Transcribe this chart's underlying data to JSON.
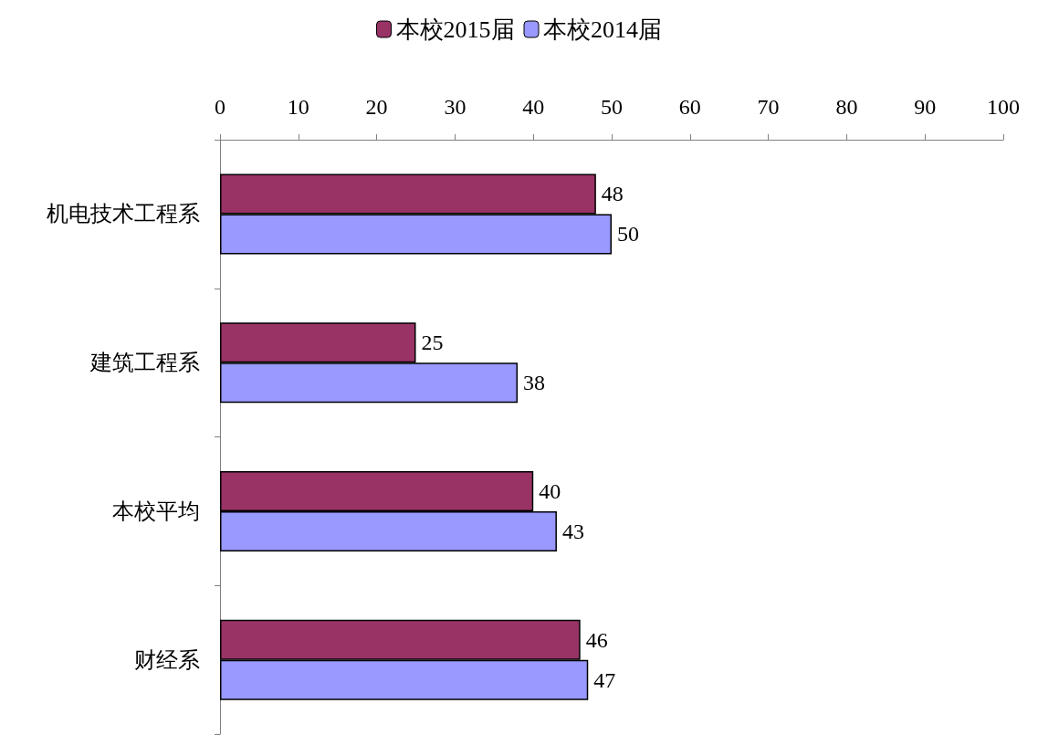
{
  "chart_data": {
    "type": "bar",
    "orientation": "horizontal",
    "categories": [
      "机电技术工程系",
      "建筑工程系",
      "本校平均",
      "财经系"
    ],
    "series": [
      {
        "name": "本校2015届",
        "color": "#993366",
        "values": [
          48,
          25,
          40,
          46
        ]
      },
      {
        "name": "本校2014届",
        "color": "#9999ff",
        "values": [
          50,
          38,
          43,
          47
        ]
      }
    ],
    "xlim": [
      0,
      100
    ],
    "xticks": [
      0,
      10,
      20,
      30,
      40,
      50,
      60,
      70,
      80,
      90,
      100
    ],
    "data_labels": true,
    "legend": "top",
    "grid": false
  }
}
